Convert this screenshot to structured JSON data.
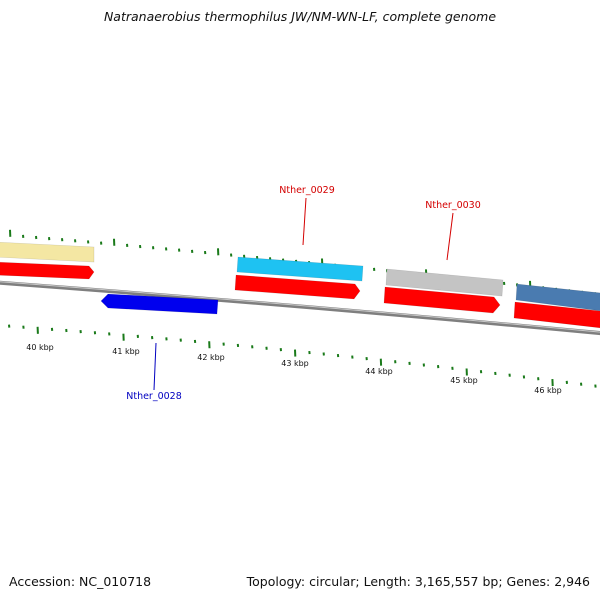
{
  "title": "Natranaerobius thermophilus JW/NM-WN-LF, complete genome",
  "footer": {
    "accession": "Accession: NC_010718",
    "summary": "Topology: circular; Length: 3,165,557 bp; Genes: 2,946"
  },
  "colors": {
    "tick": "#1a7a1a",
    "backbone": "#7f7f7f",
    "label_reverse": "#0000c0",
    "label_forward": "#d40000"
  },
  "scale_labels": [
    "40 kbp",
    "41 kbp",
    "42 kbp",
    "43 kbp",
    "44 kbp",
    "45 kbp",
    "46 kbp"
  ],
  "genes": [
    {
      "color": "#f4e7a3",
      "label": ""
    },
    {
      "color": "#ff0000",
      "label": ""
    },
    {
      "color": "#0000ee",
      "label": "Nther_0028"
    },
    {
      "color": "#1ec2f2",
      "label": "Nther_0029"
    },
    {
      "color": "#ff0000",
      "label": ""
    },
    {
      "color": "#c4c4c4",
      "label": "Nther_0030"
    },
    {
      "color": "#ff0000",
      "label": ""
    },
    {
      "color": "#4a7bb0",
      "label": ""
    },
    {
      "color": "#ff0000",
      "label": ""
    }
  ]
}
